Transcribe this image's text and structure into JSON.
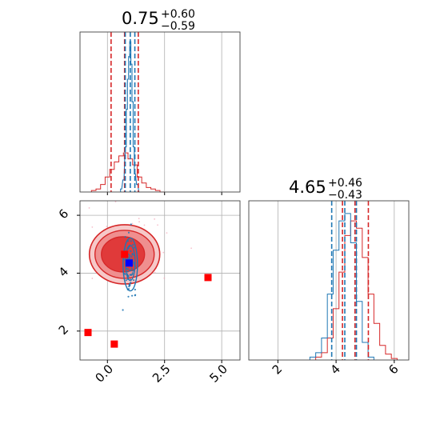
{
  "chart_data": {
    "type": "corner",
    "grid": true,
    "colors": {
      "posterior_a": "#d62728",
      "posterior_b": "#1f77b4",
      "marker_a": "#ff0000",
      "marker_b": "#0000ff"
    },
    "panels": {
      "hist_1": {
        "title_value": "0.75",
        "title_plus": "+0.60",
        "title_minus": "−0.59",
        "xlim": [
          -1.2,
          5.8
        ],
        "quantiles_red": [
          0.16,
          0.75,
          1.35
        ],
        "quantiles_blue": [
          0.78,
          1.0,
          1.2
        ],
        "hist_red": {
          "x": [
            -0.6,
            -0.4,
            -0.2,
            0.0,
            0.2,
            0.4,
            0.6,
            0.8,
            1.0,
            1.2,
            1.4,
            1.6,
            1.8,
            2.0,
            2.2,
            2.4
          ],
          "y": [
            0.01,
            0.02,
            0.05,
            0.1,
            0.15,
            0.2,
            0.24,
            0.26,
            0.22,
            0.18,
            0.1,
            0.06,
            0.03,
            0.02,
            0.01,
            0.0
          ]
        },
        "hist_blue": {
          "x": [
            0.6,
            0.7,
            0.8,
            0.85,
            0.9,
            0.95,
            1.0,
            1.05,
            1.1,
            1.15,
            1.2,
            1.3,
            1.4
          ],
          "y": [
            0.02,
            0.08,
            0.3,
            0.55,
            0.75,
            0.9,
            1.0,
            0.85,
            0.6,
            0.3,
            0.12,
            0.05,
            0.0
          ]
        }
      },
      "hist_2": {
        "title_value": "4.65",
        "title_plus": "+0.46",
        "title_minus": "−0.43",
        "xlim": [
          1.0,
          6.5
        ],
        "xticks": [
          "2",
          "4",
          "6"
        ],
        "xtick_values": [
          2,
          4,
          6
        ],
        "quantiles_red": [
          4.22,
          4.65,
          5.11
        ],
        "quantiles_blue": [
          3.85,
          4.3,
          4.7
        ],
        "hist_red": {
          "x": [
            3.4,
            3.6,
            3.8,
            4.0,
            4.2,
            4.4,
            4.6,
            4.8,
            5.0,
            5.2,
            5.4,
            5.6,
            5.8,
            6.0
          ],
          "y": [
            0.02,
            0.05,
            0.15,
            0.35,
            0.6,
            0.85,
            0.95,
            0.9,
            0.7,
            0.45,
            0.25,
            0.1,
            0.04,
            0.01
          ]
        },
        "hist_blue": {
          "x": [
            3.2,
            3.4,
            3.6,
            3.8,
            4.0,
            4.2,
            4.4,
            4.6,
            4.8,
            5.0,
            5.2
          ],
          "y": [
            0.02,
            0.05,
            0.15,
            0.45,
            0.75,
            0.95,
            1.0,
            0.8,
            0.4,
            0.12,
            0.02
          ]
        }
      },
      "scatter": {
        "xlim": [
          -1.2,
          5.8
        ],
        "ylim": [
          1.0,
          6.5
        ],
        "xticks": [
          "0.0",
          "2.5",
          "5.0"
        ],
        "xtick_values": [
          0.0,
          2.5,
          5.0
        ],
        "yticks": [
          "2",
          "4",
          "6"
        ],
        "ytick_values": [
          2,
          4,
          6
        ],
        "red_center": [
          0.75,
          4.65
        ],
        "blue_center": [
          1.0,
          4.3
        ],
        "red_markers": [
          {
            "x": 0.75,
            "y": 4.65
          },
          {
            "x": 4.4,
            "y": 3.85
          },
          {
            "x": -0.85,
            "y": 1.95
          },
          {
            "x": 0.3,
            "y": 1.55
          }
        ],
        "blue_markers": [
          {
            "x": 0.95,
            "y": 4.35
          }
        ]
      }
    }
  }
}
